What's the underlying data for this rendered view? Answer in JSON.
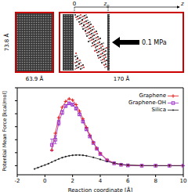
{
  "diagram": {
    "left_box": {
      "height_label": "73.8 Å",
      "width_label": "63.9 Å"
    },
    "right_box": {
      "width_label": "170 Å",
      "axis_label": "z",
      "origin_label": "0",
      "piston_label": {
        "text": "z",
        "subscript": "p"
      },
      "pressure_label": "0.1 MPa"
    }
  },
  "chart_data": {
    "type": "line",
    "x_label": "Reaction coordinate [Å]",
    "y_label": "Potential Mean Force [kcal/mol]",
    "xlim": [
      -2,
      10
    ],
    "xticks": [
      -2,
      0,
      2,
      4,
      6,
      8,
      10
    ],
    "ylim": [
      -70,
      600
    ],
    "yticks": [
      0,
      100,
      200,
      300,
      400,
      500,
      600
    ],
    "tick_labels": "x",
    "legend": "upper right",
    "series": [
      {
        "name": "Graphene",
        "color": "#e41a1c",
        "marker": "plus",
        "x": [
          0.5,
          0.75,
          1,
          1.25,
          1.5,
          1.75,
          2,
          2.25,
          2.5,
          2.75,
          3,
          3.25,
          3.5,
          3.75,
          4,
          4.5,
          5,
          5.5,
          6,
          7,
          8,
          9,
          10
        ],
        "values": [
          120,
          250,
          370,
          450,
          495,
          515,
          505,
          470,
          420,
          360,
          295,
          235,
          180,
          135,
          95,
          45,
          20,
          8,
          3,
          0,
          0,
          0,
          0
        ]
      },
      {
        "name": "Graphene-OH",
        "color": "#9b2fc9",
        "marker": "square",
        "x": [
          0.5,
          0.75,
          1,
          1.25,
          1.5,
          1.75,
          2,
          2.25,
          2.5,
          2.75,
          3,
          3.25,
          3.5,
          3.75,
          4,
          4.5,
          5,
          5.5,
          6,
          7,
          8,
          9,
          10
        ],
        "values": [
          160,
          200,
          330,
          410,
          460,
          480,
          470,
          440,
          395,
          340,
          280,
          225,
          175,
          130,
          90,
          40,
          18,
          7,
          2,
          0,
          0,
          0,
          0
        ],
        "errors": [
          45,
          30,
          20,
          15,
          10,
          8,
          8,
          8,
          8,
          8,
          8,
          6,
          6,
          5,
          5,
          4,
          3,
          2,
          2,
          1,
          1,
          1,
          1
        ]
      },
      {
        "name": "Silica",
        "color": "#222222",
        "marker": "circle",
        "x": [
          -0.75,
          -0.5,
          -0.25,
          0,
          0.25,
          0.5,
          0.75,
          1,
          1.25,
          1.5,
          1.75,
          2,
          2.25,
          2.5,
          2.75,
          3,
          3.5,
          4,
          4.5,
          5,
          5.5,
          6,
          7,
          8,
          9,
          10
        ],
        "values": [
          -25,
          -15,
          -5,
          5,
          15,
          28,
          40,
          52,
          62,
          70,
          76,
          80,
          82,
          82,
          80,
          76,
          64,
          48,
          32,
          20,
          10,
          5,
          1,
          0,
          0,
          0
        ]
      }
    ]
  }
}
